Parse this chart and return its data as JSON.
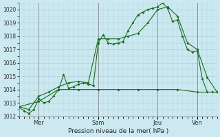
{
  "background_color": "#cce8f0",
  "grid_color": "#aad0dc",
  "line_color": "#1a6b1a",
  "xlabel": "Pression niveau de la mer( hPa )",
  "ylim": [
    1012,
    1020.5
  ],
  "yticks": [
    1012,
    1013,
    1014,
    1015,
    1016,
    1017,
    1018,
    1019,
    1020
  ],
  "day_labels": [
    "Mer",
    "Sam",
    "Jeu",
    "Ven"
  ],
  "day_positions": [
    24,
    96,
    168,
    216
  ],
  "xlim": [
    0,
    240
  ],
  "vline_positions": [
    24,
    96,
    168,
    216
  ],
  "series1_x": [
    0,
    6,
    12,
    18,
    24,
    30,
    36,
    42,
    48,
    54,
    60,
    66,
    72,
    78,
    84,
    90,
    96,
    102,
    108,
    114,
    120,
    126,
    132,
    138,
    144,
    150,
    156,
    162,
    168,
    174,
    180,
    186,
    192,
    198,
    204,
    210,
    216,
    222,
    228,
    234
  ],
  "series1_y": [
    1012.7,
    1012.4,
    1012.2,
    1012.5,
    1013.3,
    1013.0,
    1013.1,
    1013.5,
    1014.0,
    1015.1,
    1014.1,
    1014.2,
    1014.4,
    1014.5,
    1014.4,
    1014.3,
    1017.5,
    1018.1,
    1017.5,
    1017.4,
    1017.5,
    1017.6,
    1018.4,
    1019.0,
    1019.6,
    1019.8,
    1020.0,
    1020.1,
    1020.2,
    1020.5,
    1020.1,
    1019.1,
    1019.2,
    1018.0,
    1017.0,
    1016.8,
    1016.9,
    1014.8,
    1013.8,
    1013.8
  ],
  "series2_x": [
    0,
    12,
    24,
    36,
    48,
    60,
    72,
    84,
    96,
    108,
    120,
    132,
    144,
    156,
    168,
    180,
    192,
    204,
    216,
    228,
    240
  ],
  "series2_y": [
    1012.7,
    1012.5,
    1013.5,
    1013.8,
    1014.2,
    1014.5,
    1014.6,
    1014.5,
    1017.8,
    1017.8,
    1017.8,
    1018.0,
    1018.2,
    1019.0,
    1020.0,
    1020.2,
    1019.5,
    1017.5,
    1017.0,
    1014.9,
    1013.8
  ],
  "series3_x": [
    0,
    24,
    48,
    72,
    96,
    120,
    144,
    168,
    192,
    216,
    240
  ],
  "series3_y": [
    1012.7,
    1013.1,
    1014.0,
    1014.0,
    1014.0,
    1014.0,
    1014.0,
    1014.0,
    1014.0,
    1013.8,
    1013.8
  ]
}
